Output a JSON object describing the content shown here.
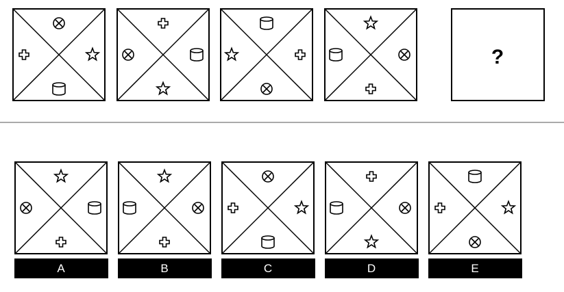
{
  "question_mark": "?",
  "sequence": [
    {
      "top": "circle-x-icon",
      "right": "star-icon",
      "bottom": "cylinder-icon",
      "left": "cross-icon"
    },
    {
      "top": "cross-icon",
      "right": "cylinder-icon",
      "bottom": "star-icon",
      "left": "circle-x-icon"
    },
    {
      "top": "cylinder-icon",
      "right": "cross-icon",
      "bottom": "circle-x-icon",
      "left": "star-icon"
    },
    {
      "top": "star-icon",
      "right": "circle-x-icon",
      "bottom": "cross-icon",
      "left": "cylinder-icon"
    }
  ],
  "options": [
    {
      "label": "A",
      "top": "star-icon",
      "right": "cylinder-icon",
      "bottom": "cross-icon",
      "left": "circle-x-icon"
    },
    {
      "label": "B",
      "top": "star-icon",
      "right": "circle-x-icon",
      "bottom": "cross-icon",
      "left": "cylinder-icon"
    },
    {
      "label": "C",
      "top": "circle-x-icon",
      "right": "star-icon",
      "bottom": "cylinder-icon",
      "left": "cross-icon"
    },
    {
      "label": "D",
      "top": "cross-icon",
      "right": "circle-x-icon",
      "bottom": "star-icon",
      "left": "cylinder-icon"
    },
    {
      "label": "E",
      "top": "cylinder-icon",
      "right": "star-icon",
      "bottom": "circle-x-icon",
      "left": "cross-icon"
    }
  ],
  "colors": {
    "stroke": "#000000",
    "label_bg": "#000000",
    "label_text": "#ffffff",
    "divider": "#555555"
  }
}
